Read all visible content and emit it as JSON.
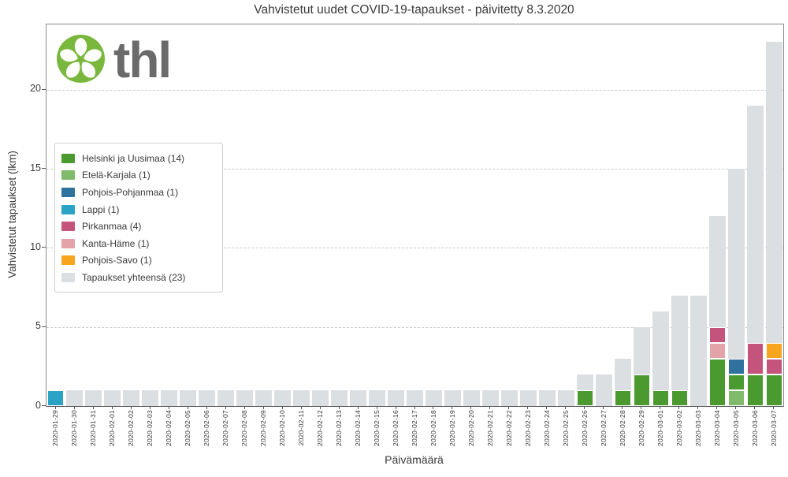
{
  "logo": {
    "text": "thl",
    "circle_color": "#7ab83d",
    "wordmark_color": "#6a6a6a"
  },
  "chart_data": {
    "type": "bar",
    "title": "Vahvistetut uudet COVID-19-tapaukset - päivitetty 8.3.2020",
    "xlabel": "Päivämäärä",
    "ylabel": "Vahvistetut tapaukset (lkm)",
    "ylim": [
      0,
      24.12
    ],
    "yticks": [
      0,
      5,
      10,
      15,
      20
    ],
    "grid": "horizontal-dashed",
    "legend_position": "upper-left-inside",
    "regions": [
      {
        "key": "helsinki",
        "label": "Helsinki ja Uusimaa (14)",
        "color": "#4a9a30"
      },
      {
        "key": "etela_karjala",
        "label": "Etelä-Karjala (1)",
        "color": "#80ba6b"
      },
      {
        "key": "pohjois_pohjanmaa",
        "label": "Pohjois-Pohjanmaa (1)",
        "color": "#31719d"
      },
      {
        "key": "lappi",
        "label": "Lappi (1)",
        "color": "#2ba3c7"
      },
      {
        "key": "pirkanmaa",
        "label": "Pirkanmaa (4)",
        "color": "#c4547c"
      },
      {
        "key": "kanta_hame",
        "label": "Kanta-Häme (1)",
        "color": "#e3a3a8"
      },
      {
        "key": "pohjois_savo",
        "label": "Pohjois-Savo (1)",
        "color": "#f7a51f"
      },
      {
        "key": "total",
        "label": "Tapaukset yhteensä (23)",
        "color": "#dcdfe2"
      }
    ],
    "dates": [
      "2020-01-29",
      "2020-01-30",
      "2020-01-31",
      "2020-02-01",
      "2020-02-02",
      "2020-02-03",
      "2020-02-04",
      "2020-02-05",
      "2020-02-06",
      "2020-02-07",
      "2020-02-08",
      "2020-02-09",
      "2020-02-10",
      "2020-02-11",
      "2020-02-12",
      "2020-02-13",
      "2020-02-14",
      "2020-02-15",
      "2020-02-16",
      "2020-02-17",
      "2020-02-18",
      "2020-02-19",
      "2020-02-20",
      "2020-02-21",
      "2020-02-22",
      "2020-02-23",
      "2020-02-24",
      "2020-02-25",
      "2020-02-26",
      "2020-02-27",
      "2020-02-28",
      "2020-02-29",
      "2020-03-01",
      "2020-03-02",
      "2020-03-03",
      "2020-03-04",
      "2020-03-05",
      "2020-03-06",
      "2020-03-07"
    ],
    "cumulative_total": [
      1,
      1,
      1,
      1,
      1,
      1,
      1,
      1,
      1,
      1,
      1,
      1,
      1,
      1,
      1,
      1,
      1,
      1,
      1,
      1,
      1,
      1,
      1,
      1,
      1,
      1,
      1,
      1,
      2,
      2,
      3,
      5,
      6,
      7,
      7,
      12,
      15,
      19,
      23
    ],
    "daily_new_by_region": {
      "2020-01-29": [
        [
          "lappi",
          1
        ]
      ],
      "2020-02-26": [
        [
          "helsinki",
          1
        ]
      ],
      "2020-02-28": [
        [
          "helsinki",
          1
        ]
      ],
      "2020-02-29": [
        [
          "helsinki",
          2
        ]
      ],
      "2020-03-01": [
        [
          "helsinki",
          1
        ]
      ],
      "2020-03-02": [
        [
          "helsinki",
          1
        ]
      ],
      "2020-03-04": [
        [
          "helsinki",
          3
        ],
        [
          "kanta_hame",
          1
        ],
        [
          "pirkanmaa",
          1
        ]
      ],
      "2020-03-05": [
        [
          "etela_karjala",
          1
        ],
        [
          "helsinki",
          1
        ],
        [
          "pohjois_pohjanmaa",
          1
        ]
      ],
      "2020-03-06": [
        [
          "helsinki",
          2
        ],
        [
          "pirkanmaa",
          2
        ]
      ],
      "2020-03-07": [
        [
          "helsinki",
          2
        ],
        [
          "pirkanmaa",
          1
        ],
        [
          "pohjois_savo",
          1
        ]
      ]
    }
  }
}
